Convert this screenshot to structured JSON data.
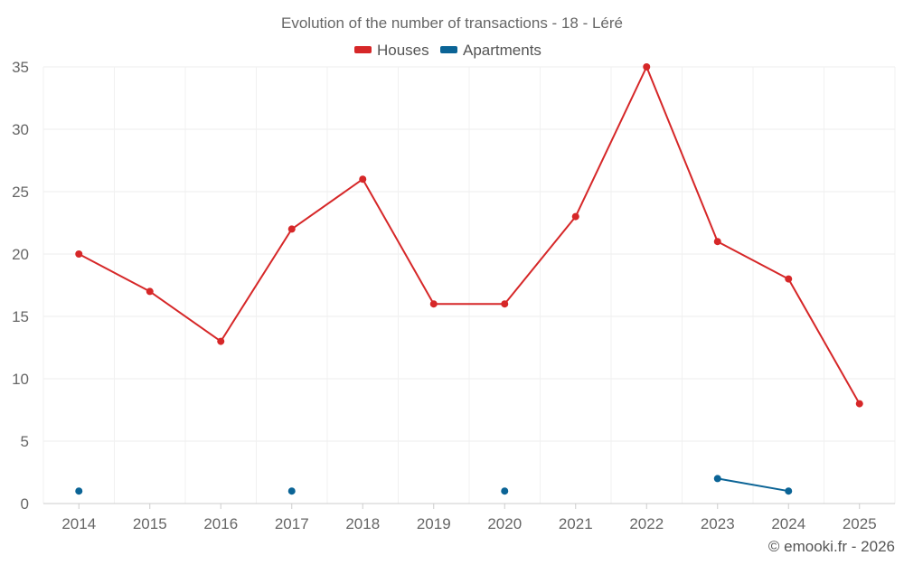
{
  "chart_data": {
    "type": "line",
    "title": "Evolution of the number of transactions - 18 - Léré",
    "categories": [
      "2014",
      "2015",
      "2016",
      "2017",
      "2018",
      "2019",
      "2020",
      "2021",
      "2022",
      "2023",
      "2024",
      "2025"
    ],
    "series": [
      {
        "name": "Houses",
        "color": "#d62728",
        "values": [
          20,
          17,
          13,
          22,
          26,
          16,
          16,
          23,
          35,
          21,
          18,
          8
        ]
      },
      {
        "name": "Apartments",
        "color": "#0b6496",
        "values": [
          1,
          null,
          null,
          1,
          null,
          null,
          1,
          null,
          null,
          2,
          1,
          null
        ]
      }
    ],
    "y_ticks": [
      "0",
      "5",
      "10",
      "15",
      "20",
      "25",
      "30",
      "35"
    ],
    "ylim": [
      0,
      35
    ],
    "xlabel": "",
    "ylabel": "",
    "grid": true,
    "legend_position": "top-center"
  },
  "credit": "© emooki.fr - 2026"
}
